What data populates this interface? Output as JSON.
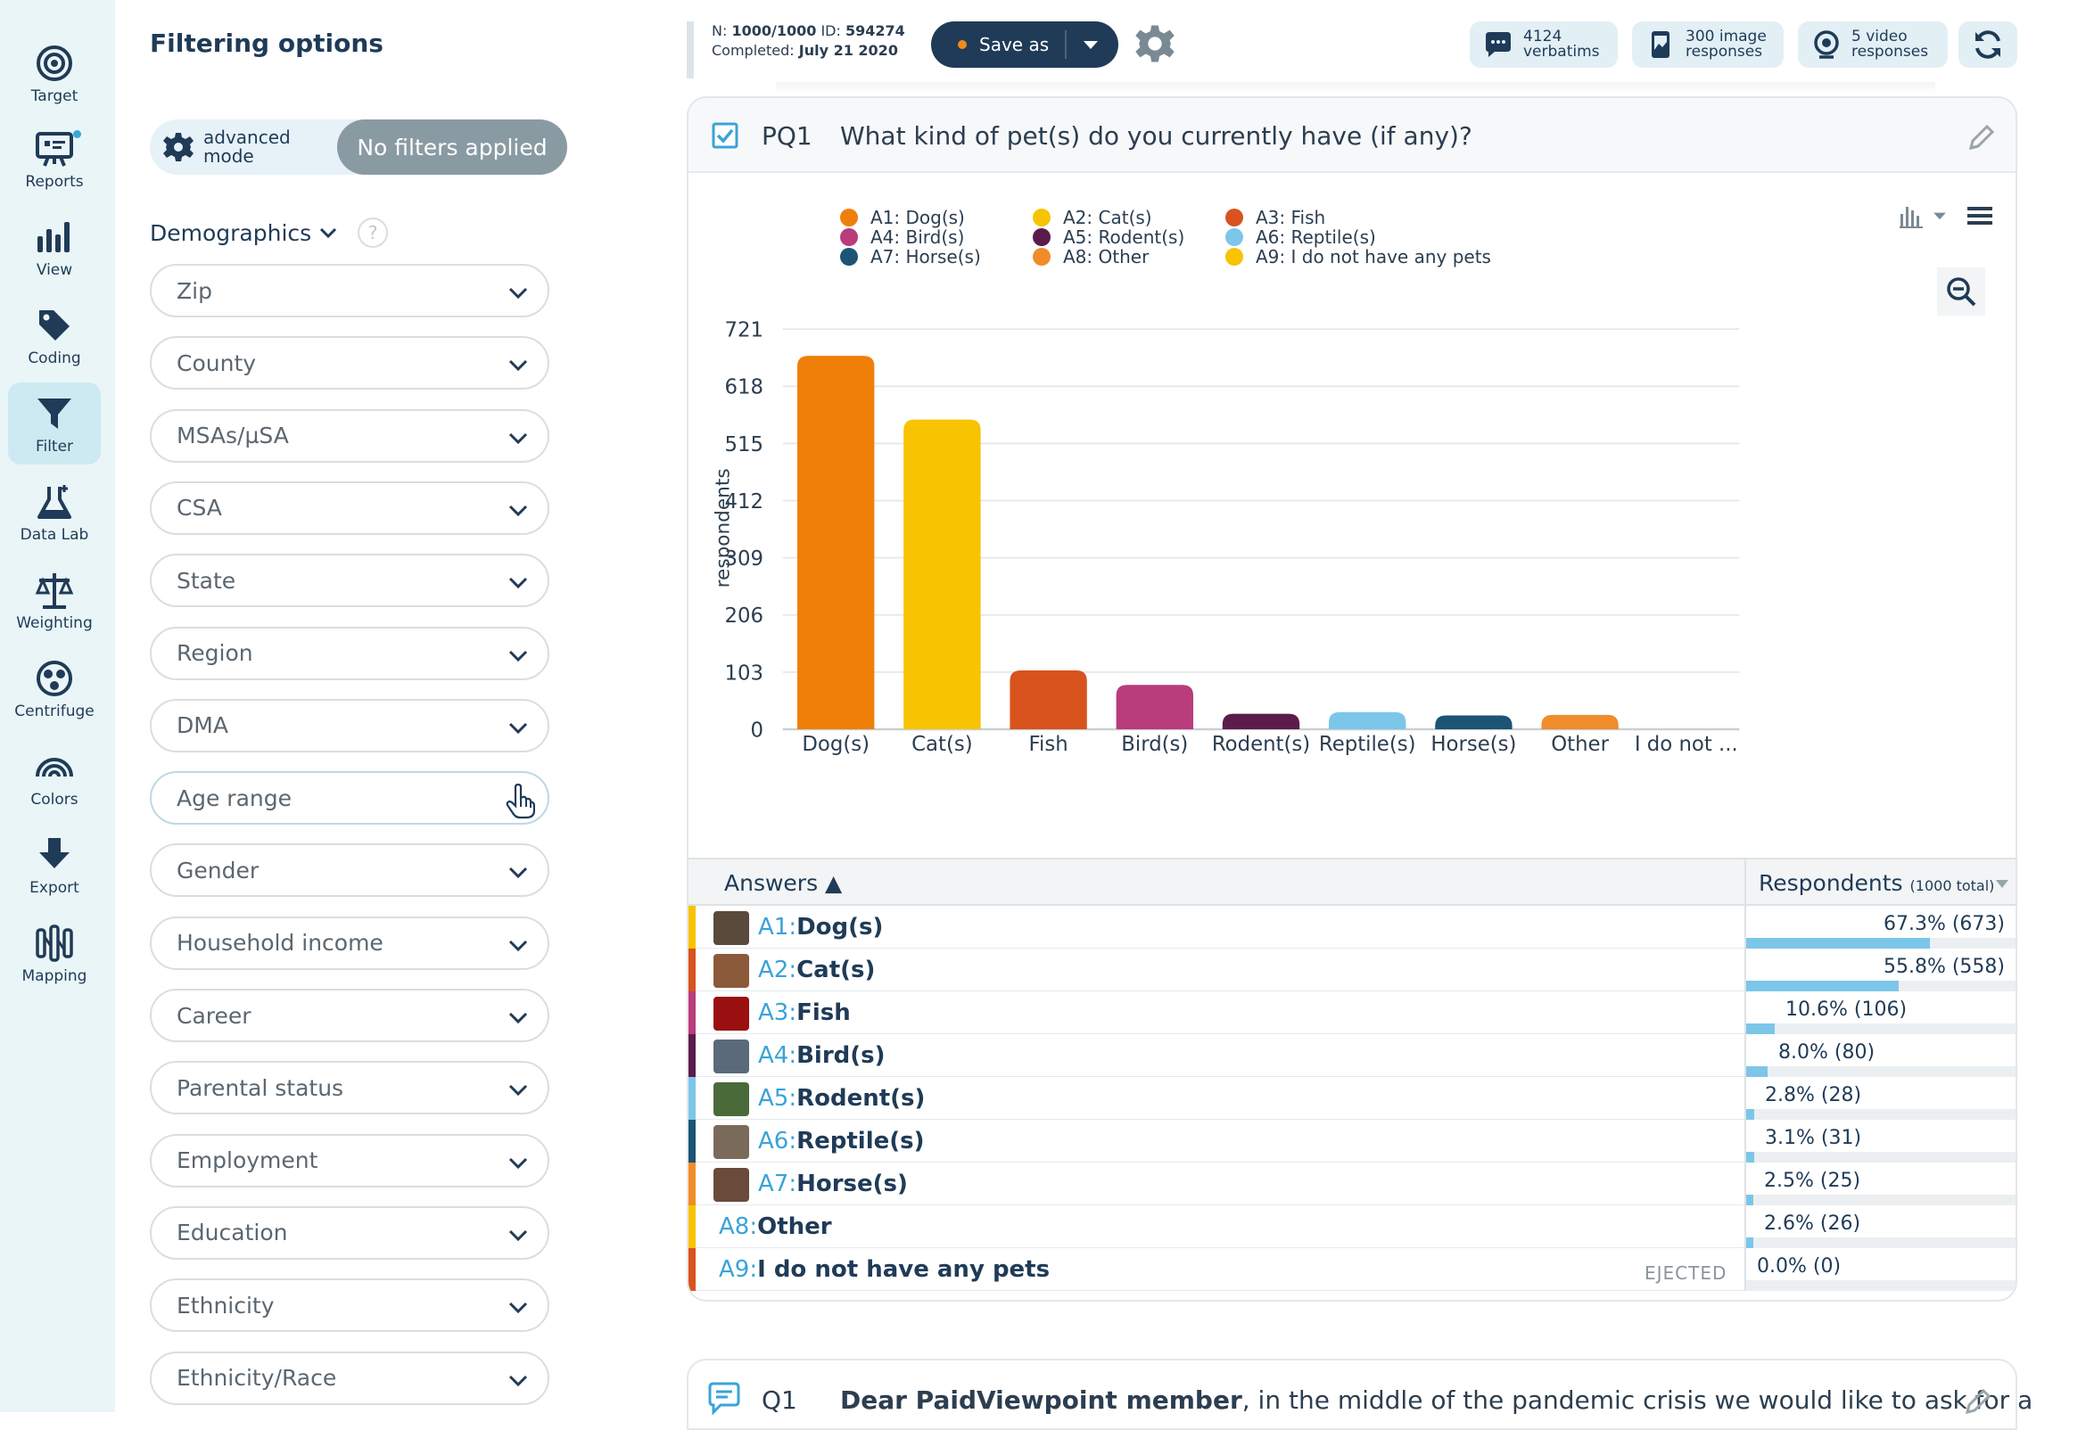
{
  "rail": {
    "items": [
      {
        "label": "Target",
        "icon": "target-icon"
      },
      {
        "label": "Reports",
        "icon": "reports-icon"
      },
      {
        "label": "View",
        "icon": "bar-chart-icon"
      },
      {
        "label": "Coding",
        "icon": "tag-icon"
      },
      {
        "label": "Filter",
        "icon": "funnel-icon",
        "active": true
      },
      {
        "label": "Data Lab",
        "icon": "flask-icon"
      },
      {
        "label": "Weighting",
        "icon": "scales-icon"
      },
      {
        "label": "Centrifuge",
        "icon": "centrifuge-icon"
      },
      {
        "label": "Colors",
        "icon": "rainbow-icon"
      },
      {
        "label": "Export",
        "icon": "download-arrow-icon"
      },
      {
        "label": "Mapping",
        "icon": "mapping-icon"
      }
    ]
  },
  "filter_panel": {
    "title": "Filtering options",
    "mode_line1": "advanced",
    "mode_line2": "mode",
    "no_filters": "No filters applied",
    "section": "Demographics",
    "help": "?",
    "dropdowns": [
      "Zip",
      "County",
      "MSAs/µSA",
      "CSA",
      "State",
      "Region",
      "DMA",
      "Age range",
      "Gender",
      "Household income",
      "Career",
      "Parental status",
      "Employment",
      "Education",
      "Ethnicity",
      "Ethnicity/Race"
    ]
  },
  "topbar": {
    "n_label": "N:",
    "n_value": "1000/1000",
    "id_label": "ID:",
    "id_value": "594274",
    "completed_label": "Completed:",
    "completed_value": "July 21 2020",
    "save_as": "Save as",
    "chips": [
      {
        "line1": "4124",
        "line2": "verbatims",
        "icon": "speech-bubble-icon"
      },
      {
        "line1": "300 image",
        "line2": "responses",
        "icon": "phone-image-icon"
      },
      {
        "line1": "5 video",
        "line2": "responses",
        "icon": "webcam-icon"
      }
    ]
  },
  "question": {
    "code": "PQ1",
    "text": "What kind of pet(s) do you currently have (if any)?"
  },
  "chart_data": {
    "type": "bar",
    "categories": [
      "Dog(s)",
      "Cat(s)",
      "Fish",
      "Bird(s)",
      "Rodent(s)",
      "Reptile(s)",
      "Horse(s)",
      "Other",
      "I do not ..."
    ],
    "values": [
      673,
      558,
      106,
      80,
      28,
      31,
      25,
      26,
      0
    ],
    "colors": [
      "#f07f0a",
      "#f8c300",
      "#d8531e",
      "#b93c7c",
      "#5b1c4c",
      "#7cc6ea",
      "#1b5475",
      "#f08c2a",
      "#f8c300"
    ],
    "ylabel": "respondents",
    "yticks": [
      0,
      103,
      206,
      309,
      412,
      515,
      618,
      721
    ],
    "ylim": [
      0,
      721
    ],
    "grid": true,
    "legend": [
      {
        "label": "A1: Dog(s)",
        "color": "#f07f0a"
      },
      {
        "label": "A2: Cat(s)",
        "color": "#f8c300"
      },
      {
        "label": "A3: Fish",
        "color": "#d8531e"
      },
      {
        "label": "A4: Bird(s)",
        "color": "#b93c7c"
      },
      {
        "label": "A5: Rodent(s)",
        "color": "#5b1c4c"
      },
      {
        "label": "A6: Reptile(s)",
        "color": "#7cc6ea"
      },
      {
        "label": "A7: Horse(s)",
        "color": "#1b5475"
      },
      {
        "label": "A8: Other",
        "color": "#f08c2a"
      },
      {
        "label": "A9: I do not have any pets",
        "color": "#f8c300"
      }
    ],
    "legend_position": "top"
  },
  "table": {
    "col_answers": "Answers ▲",
    "col_respondents": "Respondents",
    "col_total": "(1000 total)",
    "ejected": "EJECTED",
    "rows": [
      {
        "code": "A1:",
        "name": "Dog(s)",
        "pct": "67.3% (673)",
        "fraction": 0.673,
        "color": "#f8c300",
        "thumb": "#5a4a3c"
      },
      {
        "code": "A2:",
        "name": "Cat(s)",
        "pct": "55.8% (558)",
        "fraction": 0.558,
        "color": "#d8531e",
        "thumb": "#8a5a3a"
      },
      {
        "code": "A3:",
        "name": "Fish",
        "pct": "10.6% (106)",
        "fraction": 0.106,
        "color": "#b93c7c",
        "thumb": "#9a1010"
      },
      {
        "code": "A4:",
        "name": "Bird(s)",
        "pct": "8.0% (80)",
        "fraction": 0.08,
        "color": "#5b1c4c",
        "thumb": "#5a6a7a"
      },
      {
        "code": "A5:",
        "name": "Rodent(s)",
        "pct": "2.8% (28)",
        "fraction": 0.028,
        "color": "#7cc6ea",
        "thumb": "#4a6a3a"
      },
      {
        "code": "A6:",
        "name": "Reptile(s)",
        "pct": "3.1% (31)",
        "fraction": 0.031,
        "color": "#1b5475",
        "thumb": "#7a6a5a"
      },
      {
        "code": "A7:",
        "name": "Horse(s)",
        "pct": "2.5% (25)",
        "fraction": 0.025,
        "color": "#f08c2a",
        "thumb": "#6a4a3a"
      },
      {
        "code": "A8:",
        "name": "Other",
        "pct": "2.6% (26)",
        "fraction": 0.026,
        "color": "#f8c300"
      },
      {
        "code": "A9:",
        "name": "I do not have any pets",
        "pct": "0.0% (0)",
        "fraction": 0.0,
        "color": "#d8531e",
        "ejected": true
      }
    ]
  },
  "next_question": {
    "code": "Q1",
    "bold": "Dear PaidViewpoint member",
    "text": ", in the middle of the pandemic crisis we would like to ask for a"
  }
}
